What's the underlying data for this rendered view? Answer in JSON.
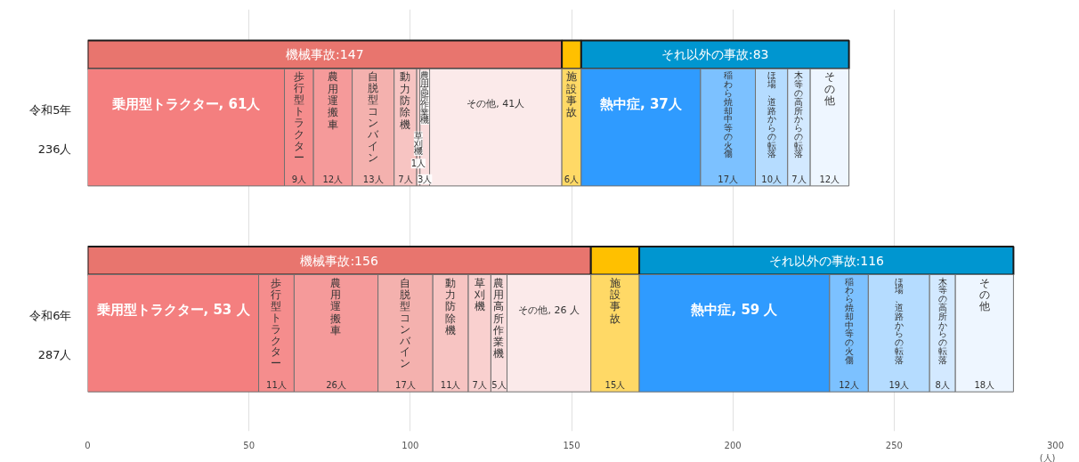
{
  "chart_data": {
    "type": "bar",
    "orientation": "horizontal",
    "stacked": true,
    "categories": [
      null,
      "令和5年",
      null,
      "令和6年"
    ],
    "totals": [
      null,
      "236人",
      null,
      "287人"
    ],
    "series": [
      {
        "color": "#e8756e",
        "values": [
          147,
          null,
          156,
          null
        ],
        "value_labels": [
          "機械事故:147",
          null,
          "機械事故:156",
          null
        ]
      },
      {
        "color": "#ffc000",
        "values": [
          6,
          null,
          15,
          null
        ]
      },
      {
        "color": "#0096d0",
        "values": [
          83,
          null,
          116,
          null
        ],
        "value_labels": [
          "それ以外の事故:83",
          null,
          "それ以外の事故:116",
          null
        ]
      },
      {
        "color": "#f47f7f",
        "values": [
          null,
          61,
          null,
          53
        ],
        "value_labels": [
          null,
          "乗用型トラクター, 61人",
          null,
          "乗用型トラクター, 53 人"
        ]
      },
      {
        "name": "歩行型トラクター",
        "color": "#f58d8d",
        "values": [
          null,
          9,
          null,
          11
        ],
        "value_labels": [
          null,
          "9人",
          null,
          "11人"
        ]
      },
      {
        "name": "農用運搬車",
        "color": "#f59a9a",
        "values": [
          null,
          12,
          null,
          26
        ],
        "value_labels": [
          null,
          "12人",
          null,
          "26人"
        ]
      },
      {
        "name": "自脱型コンバイン",
        "color": "#f4b1ae",
        "values": [
          null,
          13,
          null,
          17
        ],
        "value_labels": [
          null,
          "13人",
          null,
          "17人"
        ]
      },
      {
        "name": "動力防除機",
        "color": "#f7c4c2",
        "values": [
          null,
          7,
          null,
          11
        ],
        "value_labels": [
          null,
          "7人",
          null,
          "11人"
        ]
      },
      {
        "name": "草刈機",
        "color": "#f9d0cf",
        "values": [
          null,
          1,
          null,
          7
        ],
        "value_labels": [
          null,
          "1人",
          null,
          "7人"
        ]
      },
      {
        "name": "農用高所作業機",
        "color": "#fadddd",
        "values": [
          null,
          3,
          null,
          5
        ],
        "value_labels": [
          null,
          "3人",
          null,
          "5人"
        ]
      },
      {
        "color": "#fbeaea",
        "values": [
          null,
          41,
          null,
          26
        ],
        "value_labels": [
          null,
          "その他, 41人",
          null,
          "その他, 26 人"
        ]
      },
      {
        "name": "施設事故",
        "color": "#ffd966",
        "values": [
          null,
          6,
          null,
          15
        ],
        "value_labels": [
          null,
          "6人",
          null,
          "15人"
        ]
      },
      {
        "color": "#2f9bff",
        "values": [
          null,
          37,
          null,
          59
        ],
        "value_labels": [
          null,
          "熱中症, 37人",
          null,
          "熱中症, 59 人"
        ]
      },
      {
        "name": "稲わら焼却中等の火傷",
        "color": "#7cc1ff",
        "values": [
          null,
          17,
          null,
          12
        ],
        "value_labels": [
          null,
          "17人",
          null,
          "12人"
        ]
      },
      {
        "name": "ほ場、道路からの転落",
        "color": "#b5dcff",
        "values": [
          null,
          10,
          null,
          19
        ],
        "value_labels": [
          null,
          "10人",
          null,
          "19人"
        ]
      },
      {
        "name": "木等の高所からの転落",
        "color": "#d3e9ff",
        "values": [
          null,
          7,
          null,
          8
        ],
        "value_labels": [
          null,
          "7人",
          null,
          "8人"
        ]
      },
      {
        "name": "その他",
        "color": "#eef6ff",
        "values": [
          null,
          12,
          null,
          18
        ],
        "value_labels": [
          null,
          "12人",
          null,
          "18人"
        ]
      }
    ],
    "xlim": [
      0,
      300
    ],
    "xticks": [
      0,
      50,
      100,
      150,
      200,
      250,
      300
    ],
    "xlabel": "(人)",
    "grid": "x"
  }
}
